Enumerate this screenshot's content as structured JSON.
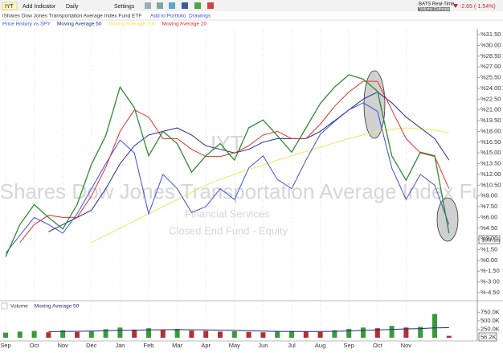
{
  "toolbar": {
    "interval": "Daily",
    "add_indicator": "Add Indicator",
    "settings": "Settings",
    "feed": "BATS Real-Time",
    "feed_note": "Volume Estimates",
    "change": "-2.65 (-1.54%)"
  },
  "header": {
    "subtitle": "iShares Dow Jones Transportation Average Index Fund ETF",
    "add_portfolio": "Add to Portfolio",
    "drawings": "Drawings"
  },
  "annotations": {
    "sector": "Financial Services",
    "category": "Closed End Fund - Equity",
    "last_price": "109.16"
  },
  "chart_data": [
    {
      "type": "line",
      "categories": [
        "Sep",
        null,
        "Oct",
        null,
        "Nov",
        null,
        "Dec",
        null,
        "Jan",
        null,
        "Feb",
        null,
        "Mar",
        null,
        "Apr",
        null,
        "May",
        null,
        "Jun",
        null,
        "Jul",
        null,
        "Aug",
        null,
        "Sep",
        null,
        "Oct",
        null,
        "Nov",
        null,
        null,
        null
      ],
      "series": [
        {
          "name": "IYT",
          "color": "#2e8b2e",
          "values": [
            0.5,
            5,
            7.8,
            6,
            4.4,
            7.8,
            13.4,
            17.4,
            24.2,
            21.3,
            14.6,
            18,
            16.3,
            12.3,
            14.6,
            16.3,
            14,
            18.5,
            19.6,
            17.4,
            15.1,
            18.5,
            21.9,
            24.2,
            25.9,
            25.3,
            23.6,
            14.6,
            11.2,
            15.1,
            14.6,
            3.8
          ]
        },
        {
          "name": "Price History vs SPY",
          "color": "#3f4fe6",
          "values": [
            1,
            3.5,
            6,
            5,
            3.8,
            6.5,
            10,
            13.5,
            16.8,
            15,
            6.5,
            12,
            10,
            6.7,
            7.5,
            10,
            8.5,
            12.9,
            14.6,
            11.3,
            10,
            14,
            17.6,
            19.4,
            21,
            22,
            20.8,
            12.9,
            8.5,
            12,
            10.5,
            5
          ]
        },
        {
          "name": "Moving Average 50",
          "color": "#1f2a8a",
          "values": [
            null,
            null,
            null,
            4,
            5,
            6,
            7,
            10,
            13.5,
            16,
            17.5,
            18,
            18.5,
            17.5,
            16,
            15.5,
            15,
            15.5,
            16.5,
            17,
            17,
            17,
            18,
            19.5,
            21,
            22.5,
            23.5,
            22,
            20,
            18.5,
            17,
            14
          ]
        },
        {
          "name": "Moving Average 200",
          "color": "#f2e35a",
          "values": [
            null,
            null,
            null,
            null,
            null,
            null,
            2.5,
            3.5,
            4.5,
            5.5,
            6.5,
            7.5,
            8.5,
            9.5,
            10.5,
            11.3,
            12,
            12.7,
            13.3,
            14,
            14.6,
            15.2,
            15.8,
            16.4,
            17,
            17.5,
            18,
            18.3,
            18.5,
            18.3,
            18.2,
            17.8
          ]
        },
        {
          "name": "Moving Average 20",
          "color": "#e0302c",
          "values": [
            null,
            2.5,
            5,
            6.3,
            6,
            6,
            9,
            13,
            18,
            21,
            20,
            17,
            17,
            15.5,
            14.5,
            14.5,
            15,
            16,
            17.5,
            18,
            17,
            17,
            19,
            21.5,
            23.5,
            25,
            25,
            21,
            17,
            15,
            14.5,
            10
          ]
        }
      ],
      "ylim": [
        -5.4,
        32.3
      ],
      "yticks": [
        {
          "value": 31.5,
          "label": "%31.50"
        },
        {
          "value": 30,
          "label": "%30.00"
        },
        {
          "value": 28.5,
          "label": "%28.50"
        },
        {
          "value": 27,
          "label": "%27.00"
        },
        {
          "value": 25.5,
          "label": "%25.50"
        },
        {
          "value": 24,
          "label": "%24.00"
        },
        {
          "value": 22.5,
          "label": "%22.50"
        },
        {
          "value": 21,
          "label": "%21.00"
        },
        {
          "value": 19.5,
          "label": "%19.50"
        },
        {
          "value": 18,
          "label": "%18.00"
        },
        {
          "value": 16.5,
          "label": "%16.50"
        },
        {
          "value": 15,
          "label": "%15.00"
        },
        {
          "value": 13.5,
          "label": "%13.50"
        },
        {
          "value": 12,
          "label": "%12.00"
        },
        {
          "value": 10.5,
          "label": "%10.50"
        },
        {
          "value": 9,
          "label": "%9.00"
        },
        {
          "value": 7.5,
          "label": "%7.50"
        },
        {
          "value": 6,
          "label": "%6.00"
        },
        {
          "value": 4.5,
          "label": "%4.50"
        },
        {
          "value": 3,
          "label": "%3.00"
        },
        {
          "value": 1.5,
          "label": "%1.50"
        },
        {
          "value": 0,
          "label": "%0.00"
        },
        {
          "value": -1.5,
          "label": "%-1.50"
        },
        {
          "value": -3,
          "label": "%-3.00"
        },
        {
          "value": -4.5,
          "label": "%-4.50"
        }
      ],
      "xgrid": true
    },
    {
      "type": "bar",
      "series": [
        {
          "name": "Volume",
          "color": "#b03030",
          "values": [
            150000,
            180000,
            200000,
            160000,
            220000,
            170000,
            190000,
            250000,
            300000,
            240000,
            280000,
            230000,
            260000,
            210000,
            200000,
            180000,
            190000,
            170000,
            160000,
            180000,
            200000,
            190000,
            170000,
            220000,
            260000,
            300000,
            280000,
            350000,
            300000,
            320000,
            700000,
            56200
          ]
        },
        {
          "name": "Moving Average 50",
          "color": "#1f2a8a",
          "values": [
            null,
            null,
            null,
            180000,
            185000,
            190000,
            195000,
            205000,
            215000,
            220000,
            230000,
            235000,
            240000,
            235000,
            230000,
            222000,
            215000,
            205000,
            195000,
            188000,
            185000,
            185000,
            185000,
            190000,
            200000,
            215000,
            230000,
            245000,
            260000,
            270000,
            290000,
            295000
          ]
        }
      ],
      "ylim": [
        0,
        900000
      ],
      "yticks": [
        {
          "value": 750000,
          "label": "750.0K"
        },
        {
          "value": 500000,
          "label": "500.0K"
        },
        {
          "value": 250000,
          "label": "250.0K"
        }
      ],
      "last_value_label": "56.2K"
    }
  ]
}
